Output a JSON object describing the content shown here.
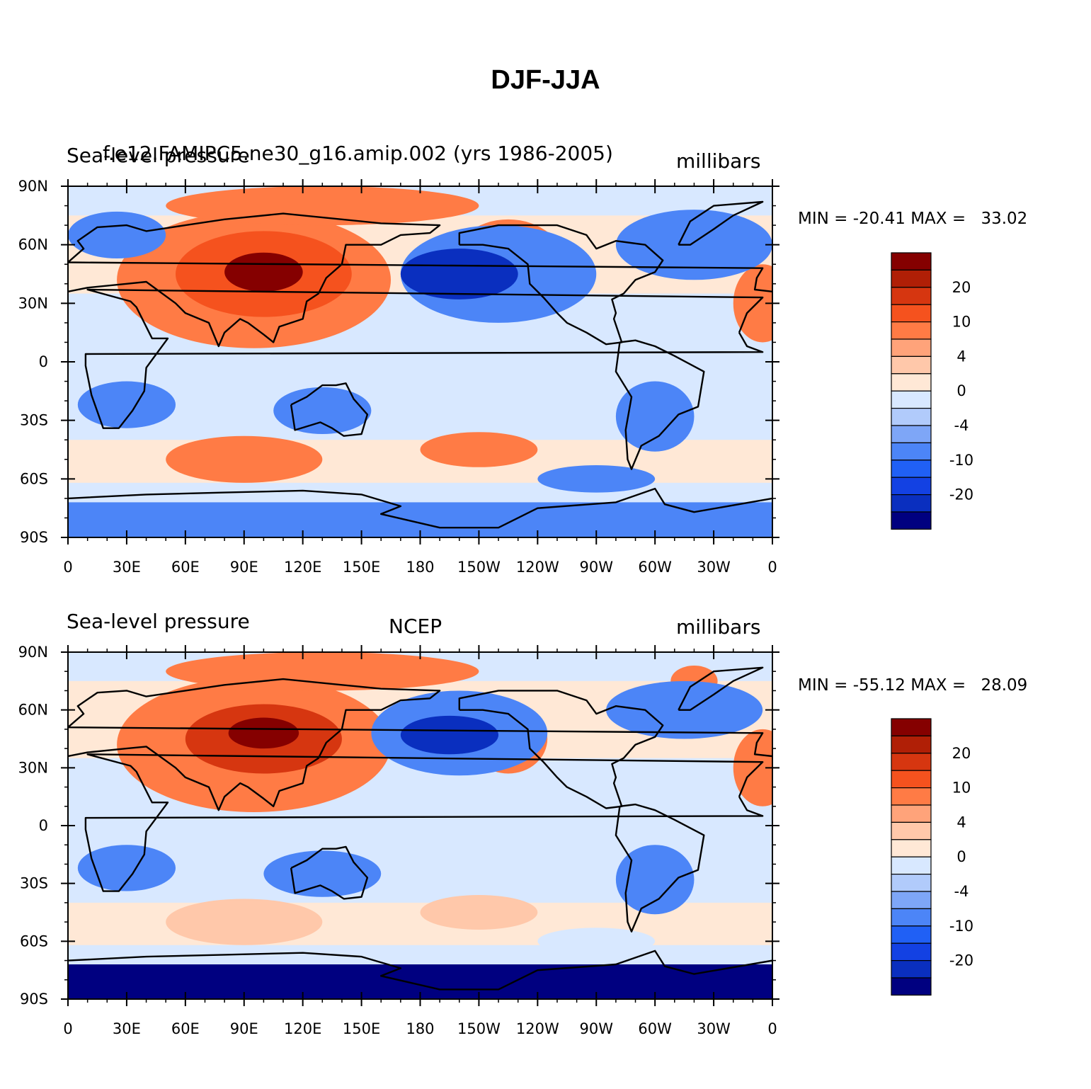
{
  "title": "DJF-JJA",
  "panels": [
    {
      "left_label": "Sea-level pressure",
      "center_label": "f.e12.FAMIPC5.ne30_g16.amip.002 (yrs 1986-2005)",
      "right_label": "millibars",
      "min_label": "MIN =",
      "min_value": "-20.41",
      "max_label": "MAX =",
      "max_value": "33.02"
    },
    {
      "left_label": "Sea-level pressure",
      "center_label": "NCEP",
      "right_label": "millibars",
      "min_label": "MIN =",
      "min_value": "-55.12",
      "max_label": "MAX =",
      "max_value": "28.09"
    }
  ],
  "lat_ticks": [
    "90N",
    "60N",
    "30N",
    "0",
    "30S",
    "60S",
    "90S"
  ],
  "lon_ticks": [
    "0",
    "30E",
    "60E",
    "90E",
    "120E",
    "150E",
    "180",
    "150W",
    "120W",
    "90W",
    "60W",
    "30W",
    "0"
  ],
  "colorbar": {
    "colors": [
      "#000080",
      "#0a2fbf",
      "#1341e3",
      "#2060f5",
      "#4c85f7",
      "#7ea6f7",
      "#b1cbfb",
      "#d8e8ff",
      "#ffe8d6",
      "#ffc8aa",
      "#ffa37a",
      "#ff7b45",
      "#f5521e",
      "#d63610",
      "#b01f06",
      "#850000"
    ],
    "tick_labels": [
      "20",
      "10",
      "4",
      "0",
      "-4",
      "-10",
      "-20"
    ]
  },
  "colors": {
    "strong_high": "#b01f06",
    "high": "#ff7b45",
    "weak_high": "#ffe8d6",
    "weak_low": "#d8e8ff",
    "low": "#4c85f7",
    "strong_low": "#0a2fbf"
  }
}
